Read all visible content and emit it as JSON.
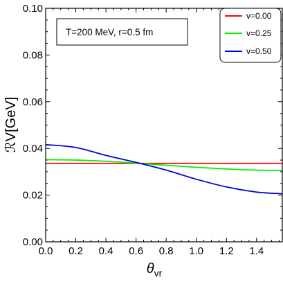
{
  "chart_data": {
    "type": "line",
    "title": "",
    "xlabel": "θ",
    "xlabel_sub": "vr",
    "ylabel": "ℛV[GeV]",
    "xlim": [
      0,
      1.5708
    ],
    "ylim": [
      0,
      0.1
    ],
    "xticks": [
      "0.0",
      "0.2",
      "0.4",
      "0.6",
      "0.8",
      "1.0",
      "1.2",
      "1.4"
    ],
    "yticks": [
      "0.00",
      "0.02",
      "0.04",
      "0.06",
      "0.08",
      "0.10"
    ],
    "grid": false,
    "legend_position": "top-right",
    "annotation": "T=200 MeV, r=0.5 fm",
    "series": [
      {
        "name": "v=0.00",
        "color": "#ff0000",
        "x": [
          0.0,
          0.2,
          0.4,
          0.6,
          0.8,
          1.0,
          1.2,
          1.4,
          1.5708
        ],
        "y": [
          0.0336,
          0.0336,
          0.0336,
          0.0336,
          0.0336,
          0.0336,
          0.0336,
          0.0336,
          0.0336
        ]
      },
      {
        "name": "v=0.25",
        "color": "#00ee00",
        "x": [
          0.0,
          0.2,
          0.4,
          0.6,
          0.8,
          1.0,
          1.2,
          1.4,
          1.5708
        ],
        "y": [
          0.0352,
          0.035,
          0.0345,
          0.0337,
          0.0328,
          0.0319,
          0.0312,
          0.0307,
          0.0306
        ]
      },
      {
        "name": "v=0.50",
        "color": "#0000dd",
        "x": [
          0.0,
          0.2,
          0.4,
          0.6,
          0.8,
          1.0,
          1.2,
          1.4,
          1.5708
        ],
        "y": [
          0.0416,
          0.0404,
          0.037,
          0.034,
          0.0307,
          0.0268,
          0.0235,
          0.0213,
          0.0206
        ]
      }
    ]
  }
}
